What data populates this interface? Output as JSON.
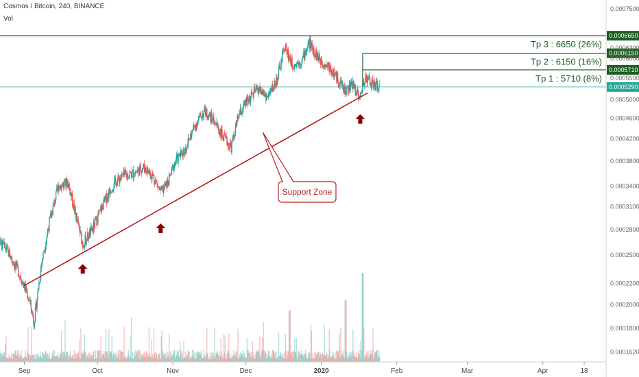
{
  "header": {
    "title": "Cosmos / Bitcoin, 240, BINANCE",
    "volume_label": "Vol"
  },
  "colors": {
    "up": "#26a69a",
    "down": "#ef5350",
    "support": "#b71c1c",
    "target": "#1b5e20",
    "current": "#26a69a"
  },
  "chart_data": {
    "type": "candlestick",
    "x_ticks": [
      "Sep",
      "Oct",
      "Nov",
      "Dec",
      "2020",
      "Feb",
      "Mar",
      "Apr",
      "18"
    ],
    "y_ticks": [
      "0.0007500",
      "0.0006650",
      "0.0006300",
      "0.0006150",
      "0.0006000",
      "0.0005710",
      "0.0005500",
      "0.0005290",
      "0.0005000",
      "0.0004600",
      "0.0004200",
      "0.0003800",
      "0.0003400",
      "0.0003100",
      "0.0002800",
      "0.0002500",
      "0.0002200",
      "0.0002000",
      "0.0001800",
      "0.0001620"
    ],
    "y_tick_values": [
      0.00075,
      0.000665,
      0.00063,
      0.000615,
      0.0006,
      0.000571,
      0.00055,
      0.000529,
      0.0005,
      0.00046,
      0.00042,
      0.00038,
      0.00034,
      0.00031,
      0.00028,
      0.00025,
      0.00022,
      0.0002,
      0.00018,
      0.000162
    ],
    "yscale": "log",
    "ylim": [
      0.000155,
      0.00078
    ],
    "current_price": "0.0005290",
    "targets": [
      {
        "label": "Tp 3 : 6650 (26%)",
        "price": "0.0006650",
        "value": 0.000665
      },
      {
        "label": "Tp 2 : 6150 (16%)",
        "price": "0.0006150",
        "value": 0.000615
      },
      {
        "label": "Tp 1 : 5710 (8%)",
        "price": "0.0005710",
        "value": 0.000571
      }
    ],
    "annotation": "Support Zone",
    "support_line": {
      "start": {
        "date": "Sep 1",
        "value": 0.000218
      },
      "end": {
        "date": "Jan 20",
        "value": 0.000515
      }
    },
    "support_touches": [
      {
        "date": "Sep 25",
        "value": 0.000252
      },
      {
        "date": "Oct 27",
        "value": 0.000302
      },
      {
        "date": "Jan 17",
        "value": 0.000492
      }
    ],
    "price_path": [
      [
        "Aug 20",
        0.00027
      ],
      [
        "Aug 25",
        0.000255
      ],
      [
        "Aug 30",
        0.00023
      ],
      [
        "Sep 3",
        0.000205
      ],
      [
        "Sep 5",
        0.000185
      ],
      [
        "Sep 8",
        0.00024
      ],
      [
        "Sep 11",
        0.000285
      ],
      [
        "Sep 15",
        0.00034
      ],
      [
        "Sep 19",
        0.000345
      ],
      [
        "Sep 22",
        0.0003
      ],
      [
        "Sep 25",
        0.000262
      ],
      [
        "Sep 29",
        0.00028
      ],
      [
        "Oct 3",
        0.00031
      ],
      [
        "Oct 7",
        0.00034
      ],
      [
        "Oct 11",
        0.000355
      ],
      [
        "Oct 16",
        0.00036
      ],
      [
        "Oct 20",
        0.00037
      ],
      [
        "Oct 24",
        0.000355
      ],
      [
        "Oct 27",
        0.00033
      ],
      [
        "Oct 30",
        0.000345
      ],
      [
        "Nov 2",
        0.00038
      ],
      [
        "Nov 6",
        0.0004
      ],
      [
        "Nov 10",
        0.000445
      ],
      [
        "Nov 14",
        0.000475
      ],
      [
        "Nov 18",
        0.000455
      ],
      [
        "Nov 22",
        0.00042
      ],
      [
        "Nov 25",
        0.000405
      ],
      [
        "Nov 28",
        0.000465
      ],
      [
        "Dec 2",
        0.0005
      ],
      [
        "Dec 6",
        0.000525
      ],
      [
        "Dec 10",
        0.000505
      ],
      [
        "Dec 14",
        0.00055
      ],
      [
        "Dec 17",
        0.000635
      ],
      [
        "Dec 20",
        0.000585
      ],
      [
        "Dec 24",
        0.000595
      ],
      [
        "Dec 27",
        0.000645
      ],
      [
        "Dec 31",
        0.0006
      ],
      [
        "Jan 4",
        0.00058
      ],
      [
        "Jan 8",
        0.000545
      ],
      [
        "Jan 11",
        0.00052
      ],
      [
        "Jan 14",
        0.000535
      ],
      [
        "Jan 17",
        0.000505
      ],
      [
        "Jan 19",
        0.000555
      ],
      [
        "Jan 22",
        0.000535
      ],
      [
        "Jan 25",
        0.000529
      ]
    ],
    "x_range": [
      "Aug 20",
      "Apr 25"
    ],
    "date_domain_days": [
      -10,
      239
    ]
  }
}
